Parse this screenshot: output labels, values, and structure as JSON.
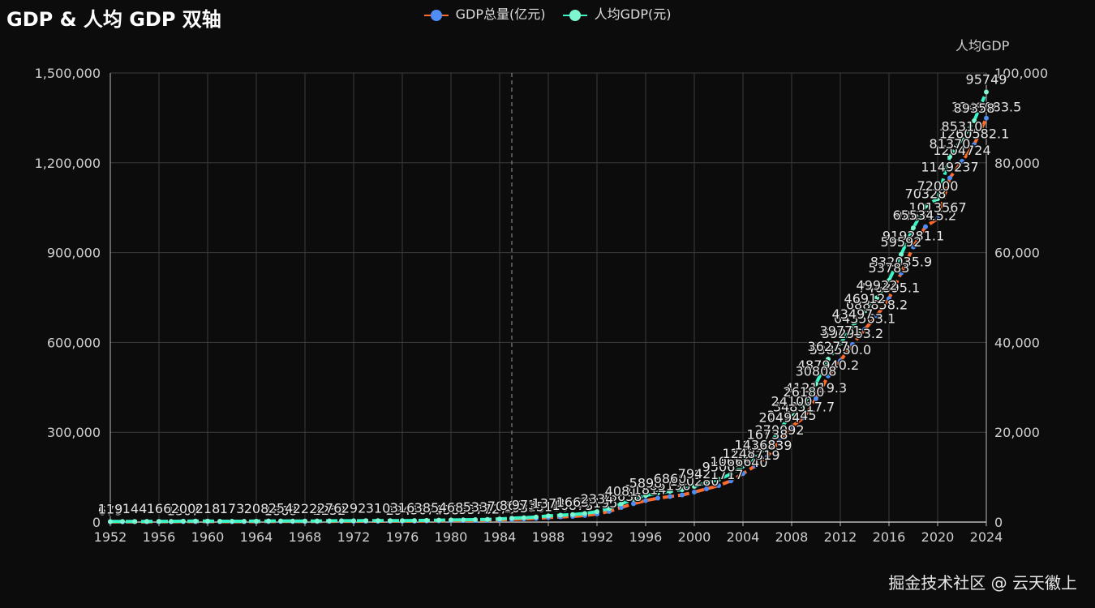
{
  "page": {
    "title": "GDP & 人均 GDP 双轴",
    "watermark": "掘金技术社区 @ 云天徽上"
  },
  "colors": {
    "gdp_line": "#ff6b2b",
    "gdp_dot": "#4e8df5",
    "pc_line": "#39f5c8",
    "pc_dot": "#7cf7cf",
    "grid": "#3b3b3b",
    "axis": "#bbbbbb",
    "label": "#cfcfcf"
  },
  "chart_data": {
    "type": "line",
    "title": "GDP & 人均 GDP 双轴",
    "legend_position": "top-center",
    "grid": true,
    "x": [
      1952,
      1953,
      1954,
      1955,
      1956,
      1957,
      1958,
      1959,
      1960,
      1961,
      1962,
      1963,
      1964,
      1965,
      1966,
      1967,
      1968,
      1969,
      1970,
      1971,
      1972,
      1973,
      1974,
      1975,
      1976,
      1977,
      1978,
      1979,
      1980,
      1981,
      1982,
      1983,
      1984,
      1985,
      1986,
      1987,
      1988,
      1989,
      1990,
      1991,
      1992,
      1993,
      1994,
      1995,
      1996,
      1997,
      1998,
      1999,
      2000,
      2001,
      2002,
      2003,
      2004,
      2005,
      2006,
      2007,
      2008,
      2009,
      2010,
      2011,
      2012,
      2013,
      2014,
      2015,
      2016,
      2017,
      2018,
      2019,
      2020,
      2021,
      2022,
      2023,
      2024
    ],
    "x_ticks": [
      "1952",
      "1956",
      "1960",
      "1964",
      "1968",
      "1972",
      "1976",
      "1980",
      "1984",
      "1988",
      "1992",
      "1996",
      "2000",
      "2004",
      "2008",
      "2012",
      "2016",
      "2020",
      "2024"
    ],
    "xlim": [
      1952,
      2024
    ],
    "y_left": {
      "label": "",
      "ylim": [
        0,
        1500000
      ],
      "ticks": [
        "0",
        "300,000",
        "600,000",
        "900,000",
        "1,200,000",
        "1,500,000"
      ]
    },
    "y_right": {
      "label": "人均GDP",
      "ylim": [
        0,
        100000
      ],
      "ticks": [
        "0",
        "20,000",
        "40,000",
        "60,000",
        "80,000",
        "100,000"
      ]
    },
    "highlight_x": 1985,
    "series": [
      {
        "name": "GDP总量(亿元)",
        "axis": "left",
        "values": [
          679,
          824,
          859,
          910,
          1028,
          1068,
          1307,
          1439,
          1457,
          1220,
          1149,
          1233,
          1454,
          1716,
          1868,
          1773,
          1723,
          1937,
          2252,
          2426,
          2518,
          2721,
          2790,
          2997,
          2943,
          3201,
          3679,
          4101,
          4588,
          4936,
          5373,
          6021,
          7279,
          9099,
          10376,
          12175,
          15180,
          17180,
          18873,
          22006,
          27195,
          35673,
          48638,
          61340,
          71814,
          79715,
          85196,
          90564,
          100280,
          110863,
          121717,
          137422,
          161840,
          187319,
          219439,
          270092,
          319245,
          348518,
          412119,
          487940,
          538580,
          592963,
          643563,
          688858,
          746395,
          832036,
          919281,
          986515,
          1013567,
          1149237,
          1204724,
          1260582,
          1349084
        ]
      },
      {
        "name": "人均GDP(元)",
        "axis": "right",
        "values": [
          119,
          142,
          144,
          150,
          166,
          168,
          200,
          216,
          218,
          185,
          173,
          181,
          208,
          240,
          254,
          235,
          222,
          243,
          276,
          288,
          292,
          309,
          310,
          324,
          316,
          339,
          385,
          423,
          468,
          497,
          533,
          588,
          702,
          866,
          973,
          1123,
          1378,
          1536,
          1663,
          1912,
          2334,
          3027,
          4081,
          5091,
          5898,
          6481,
          6860,
          7229,
          7942,
          8717,
          9506,
          10666,
          12487,
          14368,
          16738,
          20494,
          24100,
          26180,
          30808,
          36277,
          39771,
          43497,
          46912,
          49922,
          53783,
          59592,
          65534,
          70328,
          72000,
          81370,
          85310,
          89358,
          95749
        ]
      }
    ],
    "point_labels": {
      "left": {
        "1952": "679",
        "1958": "1307",
        "1966": "1868",
        "1970": "2252",
        "1976": "2943",
        "1978": "3679",
        "1980": "4588",
        "1982": "5373",
        "1984": "7279",
        "1986": "10376",
        "1988": "15180",
        "1990": "18873",
        "1992": "27195",
        "1994": "48638",
        "1996": "71814",
        "1998": "85196",
        "2000": "100280",
        "2002": "121717",
        "2004": "161840",
        "2005": "187319",
        "2006": "219439",
        "2007": "270092",
        "2008": "319245",
        "2009": "348517.7",
        "2010": "412119.3",
        "2011": "487940.2",
        "2012": "538580.0",
        "2013": "592963.2",
        "2014": "643563.1",
        "2015": "688858.2",
        "2016": "746395.1",
        "2017": "832035.9",
        "2018": "919281.1",
        "2019": "986515.2",
        "2020": "1013567",
        "2021": "1149237",
        "2022": "1204724",
        "2023": "1260582.1",
        "2024": "1349083.5"
      },
      "right": {
        "1952": "119",
        "1954": "144",
        "1956": "166",
        "1958": "200",
        "1960": "218",
        "1962": "173",
        "1964": "208",
        "1966": "254",
        "1968": "222",
        "1970": "276",
        "1972": "292",
        "1974": "310",
        "1976": "316",
        "1978": "385",
        "1980": "468",
        "1982": "533",
        "1984": "702",
        "1985": "866",
        "1986": "973",
        "1988": "1378",
        "1990": "1663",
        "1992": "2334",
        "1994": "4081",
        "1996": "5898",
        "1998": "6860",
        "2000": "7942",
        "2002": "9506",
        "2003": "10666",
        "2004": "12487",
        "2005": "14368",
        "2006": "16738",
        "2007": "20494",
        "2008": "24100",
        "2009": "26180",
        "2010": "30808",
        "2011": "36277",
        "2012": "39771",
        "2013": "43497",
        "2014": "46912",
        "2015": "49922",
        "2016": "53783",
        "2017": "59592",
        "2018": "65534",
        "2019": "70328",
        "2020": "72000",
        "2021": "81370",
        "2022": "85310",
        "2023": "89358",
        "2024": "95749"
      }
    }
  }
}
